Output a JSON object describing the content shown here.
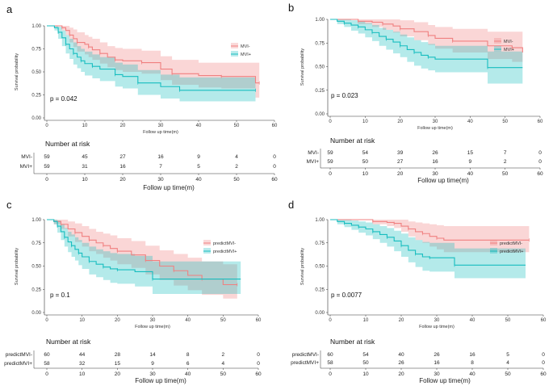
{
  "colors": {
    "mvi_neg": "#f08080",
    "mvi_pos": "#17bdbf"
  },
  "chart_data": [
    {
      "type": "line",
      "panel": "a",
      "xlabel": "Follow up time(m)",
      "ylabel": "Survival probability",
      "xlim": [
        0,
        60
      ],
      "ylim": [
        0,
        1
      ],
      "xticks": [
        "0",
        "10",
        "20",
        "30",
        "40",
        "50",
        "60"
      ],
      "yticks": [
        "0.00",
        "0.25",
        "0.50",
        "0.75",
        "1.00"
      ],
      "pvalue": "p = 0.042",
      "legend_position": "top-right",
      "series": [
        {
          "name": "MVI-",
          "color": "#f08080",
          "x": [
            0,
            2,
            4,
            5,
            6,
            7,
            8,
            10,
            11,
            12,
            14,
            16,
            18,
            20,
            25,
            30,
            33,
            40,
            46,
            55,
            56
          ],
          "y": [
            1,
            1,
            0.98,
            0.95,
            0.9,
            0.86,
            0.82,
            0.8,
            0.77,
            0.74,
            0.7,
            0.66,
            0.63,
            0.62,
            0.6,
            0.53,
            0.48,
            0.46,
            0.45,
            0.38,
            0.38
          ],
          "band_upper": [
            1,
            1,
            1,
            1,
            0.98,
            0.96,
            0.93,
            0.9,
            0.88,
            0.86,
            0.82,
            0.78,
            0.76,
            0.75,
            0.73,
            0.67,
            0.63,
            0.6,
            0.6,
            0.6,
            0.6
          ],
          "band_lower": [
            1,
            1,
            0.95,
            0.9,
            0.82,
            0.77,
            0.72,
            0.69,
            0.66,
            0.63,
            0.59,
            0.55,
            0.52,
            0.5,
            0.48,
            0.41,
            0.36,
            0.33,
            0.32,
            0.22,
            0.22
          ]
        },
        {
          "name": "MVI+",
          "color": "#17bdbf",
          "x": [
            0,
            2,
            3,
            4,
            5,
            6,
            7,
            8,
            9,
            10,
            12,
            14,
            18,
            20,
            24,
            30,
            35,
            45,
            55
          ],
          "y": [
            1,
            0.98,
            0.93,
            0.87,
            0.8,
            0.75,
            0.7,
            0.66,
            0.62,
            0.59,
            0.56,
            0.53,
            0.47,
            0.45,
            0.38,
            0.34,
            0.3,
            0.3,
            0.3
          ],
          "band_upper": [
            1,
            1,
            0.99,
            0.95,
            0.9,
            0.86,
            0.82,
            0.78,
            0.75,
            0.72,
            0.69,
            0.66,
            0.6,
            0.58,
            0.52,
            0.47,
            0.44,
            0.44,
            0.44
          ],
          "band_lower": [
            1,
            0.95,
            0.86,
            0.78,
            0.7,
            0.64,
            0.58,
            0.54,
            0.5,
            0.46,
            0.43,
            0.4,
            0.34,
            0.32,
            0.25,
            0.21,
            0.18,
            0.18,
            0.18
          ]
        }
      ],
      "risk_table": {
        "title": "Number at risk",
        "xlabel": "Follow up time(m)",
        "rows": [
          {
            "label": "MVI-",
            "color": "#f08080",
            "values": [
              "59",
              "45",
              "27",
              "16",
              "9",
              "4",
              "0"
            ]
          },
          {
            "label": "MVI+",
            "color": "#17bdbf",
            "values": [
              "59",
              "31",
              "16",
              "7",
              "5",
              "2",
              "0"
            ]
          }
        ]
      }
    },
    {
      "type": "line",
      "panel": "b",
      "xlabel": "Follow up time(m)",
      "ylabel": "Survival probability",
      "xlim": [
        0,
        60
      ],
      "ylim": [
        0,
        1
      ],
      "xticks": [
        "0",
        "10",
        "20",
        "30",
        "40",
        "50",
        "60"
      ],
      "yticks": [
        "0.00",
        "0.25",
        "0.50",
        "0.75",
        "1.00"
      ],
      "pvalue": "p = 0.023",
      "legend_position": "top-right",
      "series": [
        {
          "name": "MVI-",
          "color": "#f08080",
          "x": [
            0,
            5,
            8,
            12,
            15,
            18,
            20,
            24,
            28,
            30,
            35,
            45,
            52,
            55
          ],
          "y": [
            1,
            1,
            0.98,
            0.97,
            0.95,
            0.93,
            0.9,
            0.87,
            0.83,
            0.8,
            0.77,
            0.72,
            0.7,
            0.65
          ],
          "band_upper": [
            1,
            1,
            1,
            1,
            1,
            1,
            0.99,
            0.97,
            0.94,
            0.92,
            0.9,
            0.87,
            0.87,
            0.87
          ],
          "band_lower": [
            1,
            1,
            0.95,
            0.92,
            0.89,
            0.86,
            0.82,
            0.78,
            0.73,
            0.69,
            0.65,
            0.58,
            0.55,
            0.5
          ]
        },
        {
          "name": "MVI+",
          "color": "#17bdbf",
          "x": [
            0,
            2,
            4,
            6,
            8,
            10,
            12,
            14,
            16,
            18,
            20,
            22,
            24,
            26,
            28,
            30,
            45,
            55
          ],
          "y": [
            1,
            0.98,
            0.96,
            0.94,
            0.92,
            0.89,
            0.86,
            0.82,
            0.79,
            0.76,
            0.72,
            0.68,
            0.65,
            0.62,
            0.6,
            0.58,
            0.49,
            0.49
          ],
          "band_upper": [
            1,
            1,
            1,
            0.99,
            0.98,
            0.96,
            0.94,
            0.91,
            0.89,
            0.87,
            0.84,
            0.81,
            0.78,
            0.76,
            0.74,
            0.72,
            0.66,
            0.66
          ],
          "band_lower": [
            1,
            0.95,
            0.92,
            0.88,
            0.85,
            0.81,
            0.77,
            0.72,
            0.68,
            0.64,
            0.6,
            0.55,
            0.51,
            0.48,
            0.46,
            0.44,
            0.32,
            0.32
          ]
        }
      ],
      "risk_table": {
        "title": "Number at risk",
        "xlabel": "Follow up time(m)",
        "rows": [
          {
            "label": "MVI-",
            "color": "#f08080",
            "values": [
              "59",
              "54",
              "39",
              "26",
              "15",
              "7",
              "0"
            ]
          },
          {
            "label": "MVI+",
            "color": "#17bdbf",
            "values": [
              "59",
              "50",
              "27",
              "16",
              "9",
              "2",
              "0"
            ]
          }
        ]
      }
    },
    {
      "type": "line",
      "panel": "c",
      "xlabel": "Follow up time(m)",
      "ylabel": "Survival probability",
      "xlim": [
        0,
        60
      ],
      "ylim": [
        0,
        1
      ],
      "xticks": [
        "0",
        "10",
        "20",
        "30",
        "40",
        "50",
        "60"
      ],
      "yticks": [
        "0.00",
        "0.25",
        "0.50",
        "0.75",
        "1.00"
      ],
      "pvalue": "p = 0.1",
      "legend_position": "top-right",
      "series": [
        {
          "name": "predictMVI-",
          "color": "#f08080",
          "x": [
            0,
            2,
            4,
            6,
            8,
            10,
            12,
            14,
            16,
            18,
            20,
            24,
            28,
            32,
            36,
            40,
            44,
            50,
            54
          ],
          "y": [
            1,
            0.98,
            0.95,
            0.9,
            0.86,
            0.82,
            0.78,
            0.75,
            0.72,
            0.69,
            0.66,
            0.62,
            0.56,
            0.5,
            0.45,
            0.4,
            0.36,
            0.3,
            0.3
          ],
          "band_upper": [
            1,
            1,
            1,
            0.98,
            0.96,
            0.93,
            0.9,
            0.87,
            0.85,
            0.83,
            0.8,
            0.77,
            0.72,
            0.67,
            0.63,
            0.59,
            0.55,
            0.52,
            0.52
          ],
          "band_lower": [
            1,
            0.95,
            0.9,
            0.82,
            0.76,
            0.71,
            0.66,
            0.63,
            0.59,
            0.56,
            0.52,
            0.48,
            0.41,
            0.35,
            0.29,
            0.24,
            0.19,
            0.15,
            0.15
          ]
        },
        {
          "name": "predictMVI+",
          "color": "#17bdbf",
          "x": [
            0,
            2,
            3,
            4,
            5,
            6,
            7,
            8,
            9,
            10,
            12,
            14,
            16,
            18,
            20,
            25,
            30,
            55
          ],
          "y": [
            1,
            0.98,
            0.93,
            0.87,
            0.81,
            0.76,
            0.72,
            0.68,
            0.64,
            0.6,
            0.55,
            0.52,
            0.49,
            0.47,
            0.46,
            0.44,
            0.36,
            0.36
          ],
          "band_upper": [
            1,
            1,
            0.99,
            0.95,
            0.91,
            0.87,
            0.84,
            0.81,
            0.78,
            0.75,
            0.71,
            0.68,
            0.66,
            0.64,
            0.63,
            0.61,
            0.55,
            0.55
          ],
          "band_lower": [
            1,
            0.95,
            0.86,
            0.78,
            0.71,
            0.65,
            0.6,
            0.56,
            0.51,
            0.47,
            0.41,
            0.38,
            0.35,
            0.32,
            0.31,
            0.28,
            0.2,
            0.2
          ]
        }
      ],
      "risk_table": {
        "title": "Number at risk",
        "xlabel": "Follow up time(m)",
        "rows": [
          {
            "label": "predictMVI-",
            "color": "#f08080",
            "values": [
              "60",
              "44",
              "28",
              "14",
              "8",
              "2",
              "0"
            ]
          },
          {
            "label": "predictMVI+",
            "color": "#17bdbf",
            "values": [
              "58",
              "32",
              "15",
              "9",
              "6",
              "4",
              "0"
            ]
          }
        ]
      }
    },
    {
      "type": "line",
      "panel": "d",
      "xlabel": "Follow up time(m)",
      "ylabel": "Survival probability",
      "xlim": [
        0,
        60
      ],
      "ylim": [
        0,
        1
      ],
      "xticks": [
        "0",
        "10",
        "20",
        "30",
        "40",
        "50",
        "60"
      ],
      "yticks": [
        "0.00",
        "0.25",
        "0.50",
        "0.75",
        "1.00"
      ],
      "pvalue": "p = 0.0077",
      "legend_position": "top-right",
      "series": [
        {
          "name": "predictMVI-",
          "color": "#f08080",
          "x": [
            0,
            8,
            12,
            16,
            18,
            20,
            22,
            24,
            26,
            28,
            30,
            32,
            56
          ],
          "y": [
            1,
            1,
            0.98,
            0.97,
            0.96,
            0.93,
            0.9,
            0.87,
            0.85,
            0.82,
            0.8,
            0.78,
            0.78
          ],
          "band_upper": [
            1,
            1,
            1,
            1,
            1,
            1,
            0.98,
            0.97,
            0.96,
            0.95,
            0.94,
            0.93,
            0.93
          ],
          "band_lower": [
            1,
            1,
            0.95,
            0.93,
            0.91,
            0.87,
            0.82,
            0.78,
            0.75,
            0.71,
            0.68,
            0.65,
            0.65
          ]
        },
        {
          "name": "predictMVI+",
          "color": "#17bdbf",
          "x": [
            0,
            2,
            4,
            6,
            8,
            10,
            12,
            14,
            16,
            18,
            20,
            22,
            24,
            26,
            28,
            30,
            35,
            55
          ],
          "y": [
            1,
            0.98,
            0.96,
            0.94,
            0.92,
            0.9,
            0.87,
            0.84,
            0.81,
            0.77,
            0.72,
            0.67,
            0.63,
            0.6,
            0.59,
            0.59,
            0.51,
            0.51
          ],
          "band_upper": [
            1,
            1,
            1,
            0.99,
            0.98,
            0.97,
            0.95,
            0.93,
            0.91,
            0.88,
            0.85,
            0.81,
            0.78,
            0.76,
            0.75,
            0.75,
            0.69,
            0.69
          ],
          "band_lower": [
            1,
            0.95,
            0.92,
            0.89,
            0.86,
            0.83,
            0.79,
            0.75,
            0.71,
            0.66,
            0.6,
            0.54,
            0.49,
            0.45,
            0.44,
            0.44,
            0.37,
            0.37
          ]
        }
      ],
      "risk_table": {
        "title": "Number at risk",
        "xlabel": "Follow up time(m)",
        "rows": [
          {
            "label": "predictMVI-",
            "color": "#f08080",
            "values": [
              "60",
              "54",
              "40",
              "26",
              "16",
              "5",
              "0"
            ]
          },
          {
            "label": "predictMVI+",
            "color": "#17bdbf",
            "values": [
              "58",
              "50",
              "26",
              "16",
              "8",
              "4",
              "0"
            ]
          }
        ]
      }
    }
  ]
}
